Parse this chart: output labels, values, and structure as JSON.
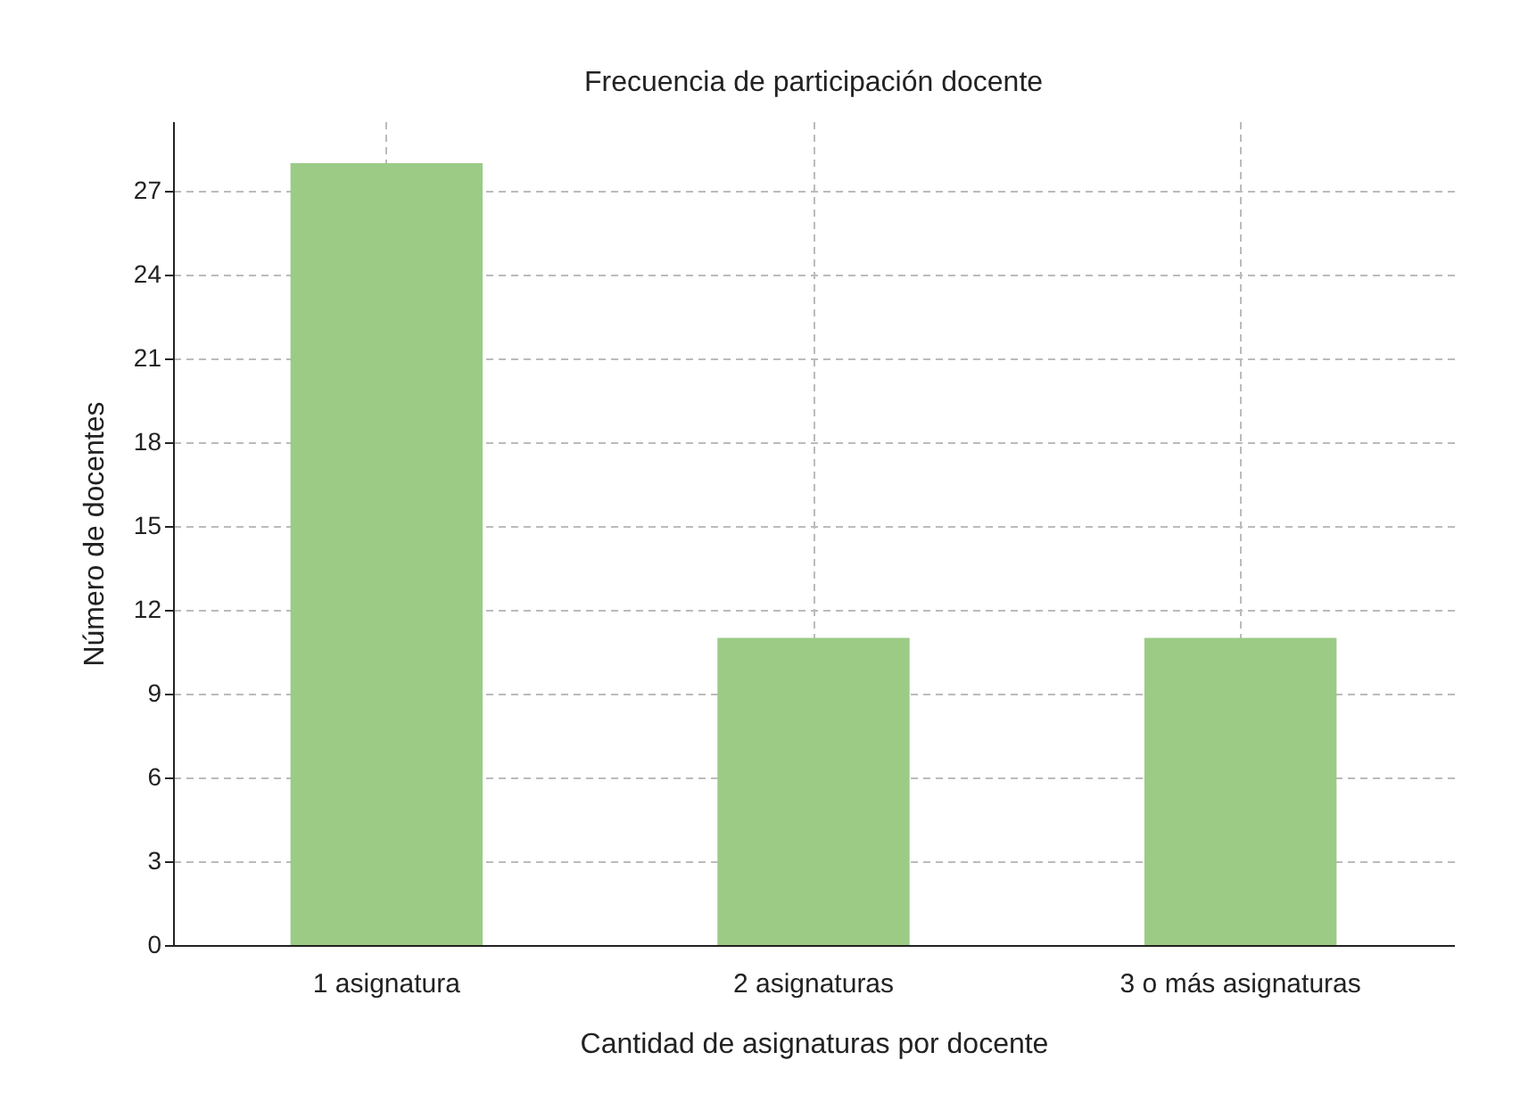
{
  "chart_data": {
    "type": "bar",
    "title": "Frecuencia de participación docente",
    "xlabel": "Cantidad de asignaturas por docente",
    "ylabel": "Número de docentes",
    "categories": [
      "1 asignatura",
      "2 asignaturas",
      "3 o más asignaturas"
    ],
    "values": [
      28,
      11,
      11
    ],
    "color": "#9ccb86",
    "ylim": [
      0,
      29.5
    ],
    "yticks": [
      0,
      3,
      6,
      9,
      12,
      15,
      18,
      21,
      24,
      27
    ],
    "grid": true
  }
}
